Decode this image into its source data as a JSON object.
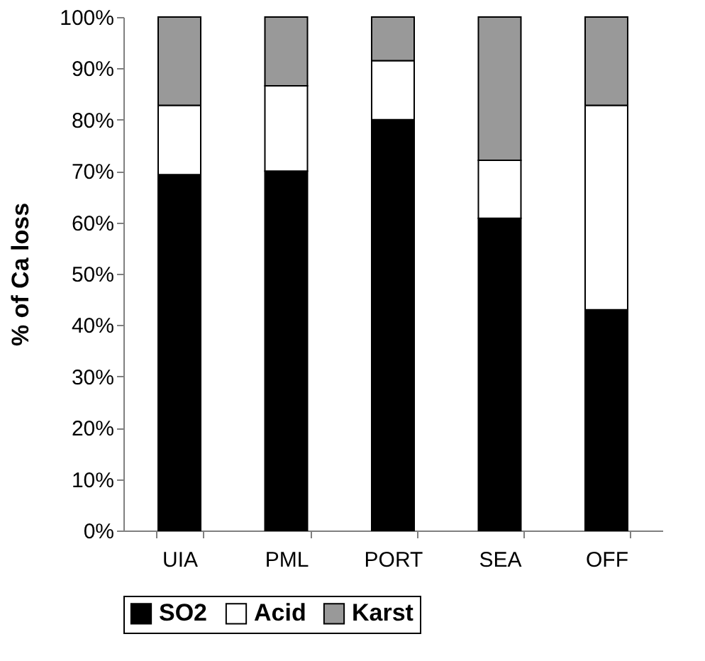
{
  "chart_data": {
    "type": "bar",
    "stacked": true,
    "ylabel": "% of Ca loss",
    "categories": [
      "UIA",
      "PML",
      "PORT",
      "SEA",
      "OFF"
    ],
    "series": [
      {
        "name": "SO2",
        "color": "#000000",
        "values": [
          69.3,
          70,
          80,
          60.8,
          43
        ]
      },
      {
        "name": "Acid",
        "color": "#ffffff",
        "values": [
          13.5,
          16.6,
          11.5,
          11.3,
          39.8
        ]
      },
      {
        "name": "Karst",
        "color": "#999999",
        "values": [
          17.2,
          13.4,
          8.5,
          27.9,
          17.2
        ]
      }
    ],
    "ylim": [
      0,
      100
    ],
    "yticks": [
      {
        "value": 0,
        "label": "0%"
      },
      {
        "value": 10,
        "label": "10%"
      },
      {
        "value": 20,
        "label": "20%"
      },
      {
        "value": 30,
        "label": "30%"
      },
      {
        "value": 40,
        "label": "40%"
      },
      {
        "value": 50,
        "label": "50%"
      },
      {
        "value": 60,
        "label": "60%"
      },
      {
        "value": 70,
        "label": "70%"
      },
      {
        "value": 80,
        "label": "80%"
      },
      {
        "value": 90,
        "label": "90%"
      },
      {
        "value": 100,
        "label": "100%"
      }
    ],
    "grid": false,
    "legend": "bottom"
  }
}
